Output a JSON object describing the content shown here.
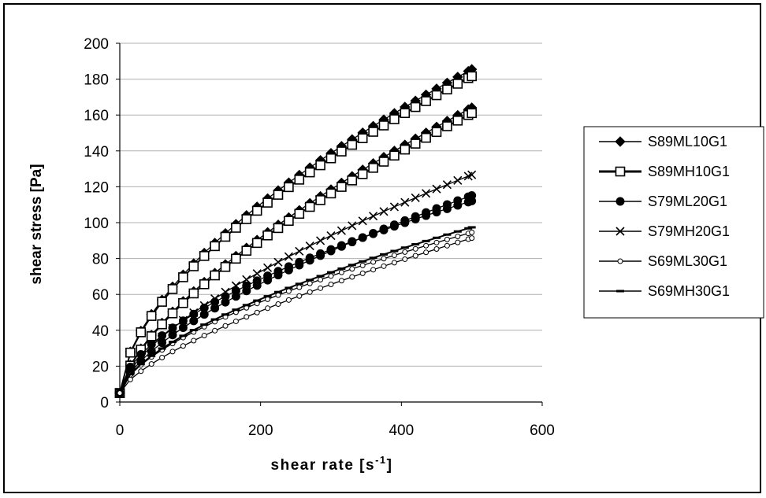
{
  "chart_data": {
    "type": "scatter",
    "xlabel_main": "shear rate [s",
    "xlabel_sup": "-1",
    "xlabel_end": "]",
    "ylabel": "shear stress [Pa]",
    "xlim": [
      0,
      600
    ],
    "ylim": [
      0,
      200
    ],
    "xticks": [
      "0",
      "200",
      "400",
      "600"
    ],
    "yticks": [
      "0",
      "20",
      "40",
      "60",
      "80",
      "100",
      "120",
      "140",
      "160",
      "180",
      "200"
    ],
    "grid": "horizontal",
    "legend_position": "right",
    "series": [
      {
        "name": "S89ML10G1",
        "marker": "diamond-filled",
        "k": 4.7,
        "n": 0.587,
        "b": 5
      },
      {
        "name": "S89MH10G1",
        "marker": "square-open",
        "k": 4.6,
        "n": 0.587,
        "b": 5
      },
      {
        "name": "S89ML10G1",
        "marker": "diamond-filled",
        "k": 2.6,
        "n": 0.662,
        "b": 5,
        "legend": false
      },
      {
        "name": "S89MH10G1",
        "marker": "square-open",
        "k": 2.55,
        "n": 0.662,
        "b": 5,
        "legend": false
      },
      {
        "name": "S79ML20G1",
        "marker": "circle-filled",
        "k": 3.1,
        "n": 0.57,
        "b": 5
      },
      {
        "name": "S79MH20G1",
        "marker": "cross",
        "k": 2.28,
        "n": 0.64,
        "b": 5
      },
      {
        "name": "S79ML20G1",
        "marker": "circle-filled",
        "k": 2.0,
        "n": 0.645,
        "b": 5,
        "legend": false
      },
      {
        "name": "S69ML30G1",
        "marker": "circle-open",
        "k": 1.9,
        "n": 0.62,
        "b": 5
      },
      {
        "name": "S69MH30G1",
        "marker": "dash",
        "k": 1.96,
        "n": 0.62,
        "b": 5
      },
      {
        "name": "S69ML30G1",
        "marker": "circle-open",
        "k": 1.15,
        "n": 0.695,
        "b": 5,
        "legend": false
      }
    ]
  }
}
